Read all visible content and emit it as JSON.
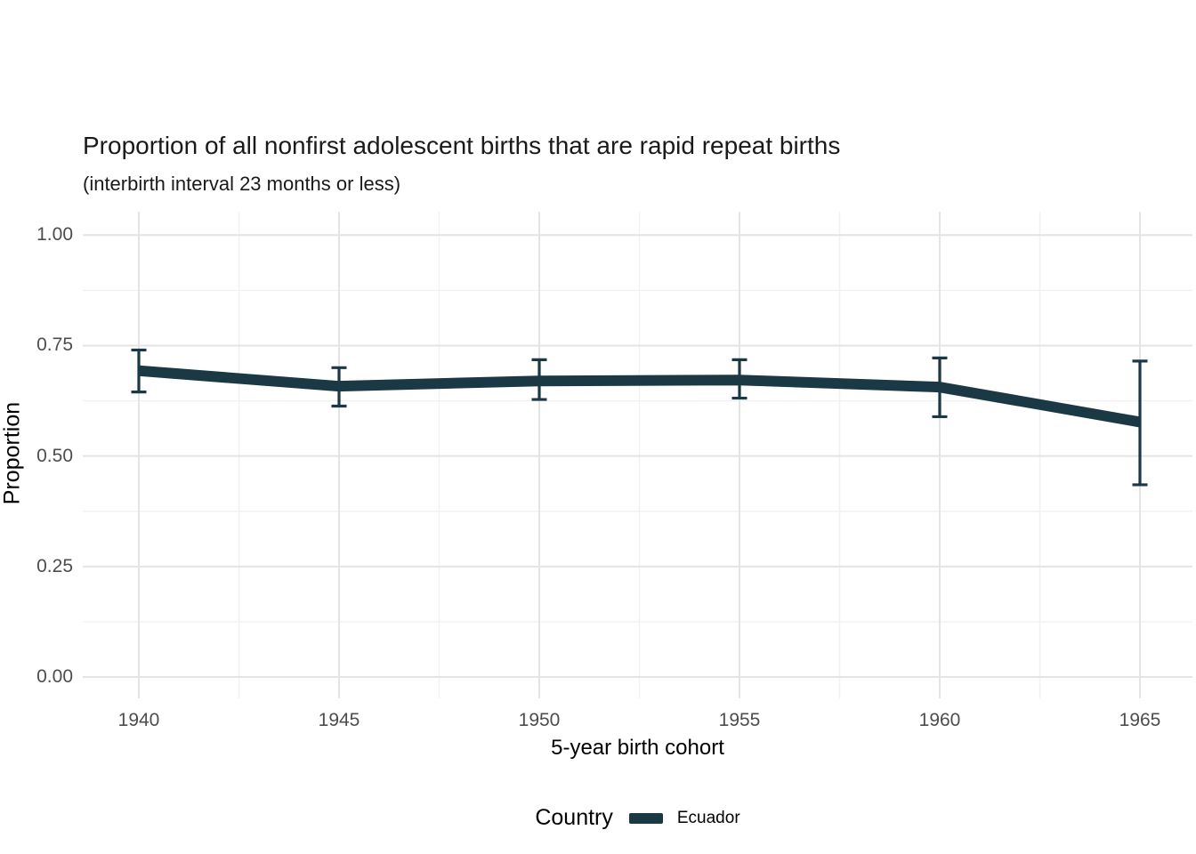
{
  "title": "Proportion of all nonfirst adolescent births that are rapid repeat births",
  "subtitle": "(interbirth interval 23 months or less)",
  "colors": {
    "series": "#1b3944",
    "grid_major": "#e4e4e4",
    "grid_minor": "#f1f1f1",
    "tick_label": "#4d4d4d",
    "text": "#000000",
    "background": "#ffffff"
  },
  "legend": {
    "title": "Country",
    "items": [
      {
        "label": "Ecuador",
        "color": "#1b3944"
      }
    ]
  },
  "chart_data": {
    "type": "line",
    "title": "Proportion of all nonfirst adolescent births that are rapid repeat births",
    "subtitle": "(interbirth interval 23 months or less)",
    "xlabel": "5-year birth cohort",
    "ylabel": "Proportion",
    "x": [
      1940,
      1945,
      1950,
      1955,
      1960,
      1965
    ],
    "x_tick_labels": [
      "1940",
      "1945",
      "1950",
      "1955",
      "1960",
      "1965"
    ],
    "y_ticks": [
      0.0,
      0.25,
      0.5,
      0.75,
      1.0
    ],
    "y_tick_labels": [
      "0.00",
      "0.25",
      "0.50",
      "0.75",
      "1.00"
    ],
    "y_minor_ticks": [
      0.125,
      0.375,
      0.625,
      0.875
    ],
    "ylim": [
      0,
      1
    ],
    "grid": "major+minor",
    "legend_position": "bottom",
    "legend_title": "Country",
    "series": [
      {
        "name": "Ecuador",
        "color": "#1b3944",
        "values": [
          0.693,
          0.658,
          0.67,
          0.672,
          0.656,
          0.577
        ],
        "ci_low": [
          0.645,
          0.613,
          0.628,
          0.631,
          0.589,
          0.435
        ],
        "ci_high": [
          0.74,
          0.7,
          0.718,
          0.718,
          0.722,
          0.715
        ],
        "error_bars": true
      }
    ]
  }
}
